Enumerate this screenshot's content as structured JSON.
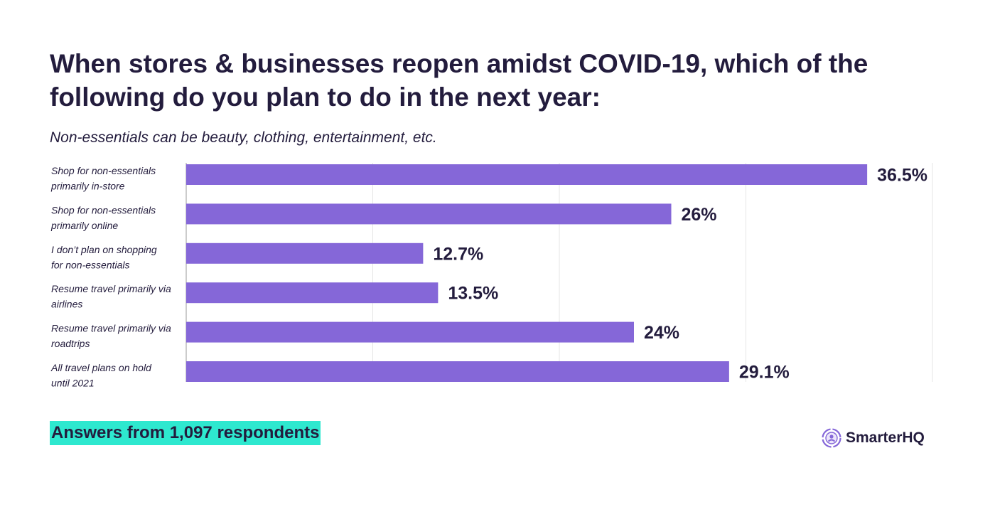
{
  "header": {
    "title": "When stores & businesses reopen amidst COVID-19, which of the following do you plan to do in the next year:",
    "subtitle": "Non-essentials can be beauty, clothing, entertainment, etc."
  },
  "chart_data": {
    "type": "bar",
    "orientation": "horizontal",
    "categories": [
      [
        "Shop for non-essentials",
        "primarily in-store"
      ],
      [
        "Shop for non-essentials",
        "primarily online"
      ],
      [
        "I don’t plan on shopping",
        "for non-essentials"
      ],
      [
        "Resume travel primarily via",
        "airlines"
      ],
      [
        "Resume travel primarily via",
        "roadtrips"
      ],
      [
        "All travel plans on hold",
        "until 2021"
      ]
    ],
    "values": [
      36.5,
      26,
      12.7,
      13.5,
      24,
      29.1
    ],
    "value_labels": [
      "36.5%",
      "26%",
      "12.7%",
      "13.5%",
      "24%",
      "29.1%"
    ],
    "xlim": [
      0,
      40
    ],
    "grid": true,
    "bar_color": "#8567d8",
    "grid_color": "#e6e6e6",
    "axis_color": "#999999",
    "label_color": "#231c3d"
  },
  "footer": {
    "note": "Answers from 1,097 respondents",
    "note_highlight": "#2ee8cf",
    "brand": "SmarterHQ",
    "brand_icon": "smarterhq-logo-icon",
    "brand_color": "#8567d8"
  }
}
